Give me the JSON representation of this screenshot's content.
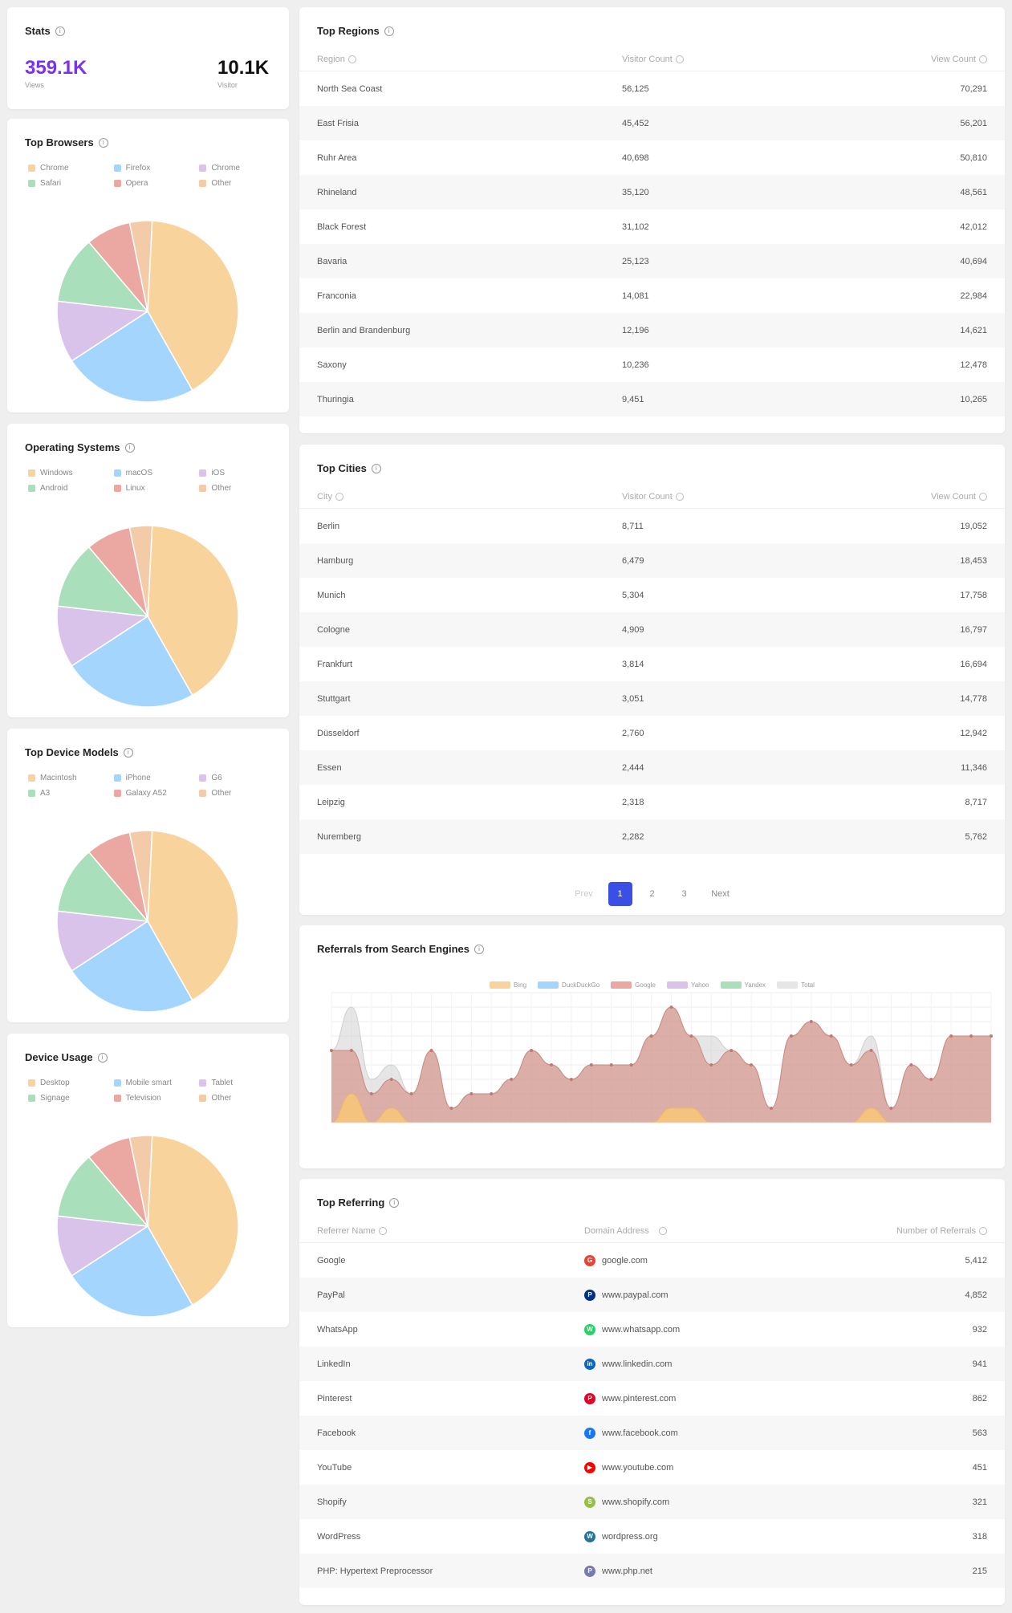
{
  "stats": {
    "title": "Stats",
    "views_value": "359.1K",
    "views_label": "Views",
    "visitors_value": "10.1K",
    "visitors_label": "Visitor"
  },
  "colors": {
    "c1": "#f8d49c",
    "c2": "#a4d6fd",
    "c3": "#d9c3ea",
    "c4": "#a9dfba",
    "c5": "#eba8a3",
    "c6": "#f4cba9",
    "accent": "#7b2ff7",
    "page_active": "#3b4fe4"
  },
  "browsers": {
    "title": "Top Browsers",
    "legend": [
      "Chrome",
      "Firefox",
      "Chrome",
      "Safari",
      "Opera",
      "Other"
    ],
    "values": [
      41,
      24,
      11,
      12,
      8,
      4
    ]
  },
  "os": {
    "title": "Operating Systems",
    "legend": [
      "Windows",
      "macOS",
      "iOS",
      "Android",
      "Linux",
      "Other"
    ],
    "values": [
      41,
      24,
      11,
      12,
      8,
      4
    ]
  },
  "devices": {
    "title": "Top Device Models",
    "legend": [
      "Macintosh",
      "iPhone",
      "G6",
      "A3",
      "Galaxy A52",
      "Other"
    ],
    "values": [
      41,
      24,
      11,
      12,
      8,
      4
    ]
  },
  "usage": {
    "title": "Device Usage",
    "legend": [
      "Desktop",
      "Mobile smart",
      "Tablet",
      "Signage",
      "Television",
      "Other"
    ],
    "values": [
      41,
      24,
      11,
      12,
      8,
      4
    ]
  },
  "regions": {
    "title": "Top Regions",
    "headers": [
      "Region",
      "Visitor Count",
      "View Count"
    ],
    "rows": [
      [
        "North Sea Coast",
        "56,125",
        "70,291"
      ],
      [
        "East Frisia",
        "45,452",
        "56,201"
      ],
      [
        "Ruhr Area",
        "40,698",
        "50,810"
      ],
      [
        "Rhineland",
        "35,120",
        "48,561"
      ],
      [
        "Black Forest",
        "31,102",
        "42,012"
      ],
      [
        "Bavaria",
        "25,123",
        "40,694"
      ],
      [
        "Franconia",
        "14,081",
        "22,984"
      ],
      [
        "Berlin and Brandenburg",
        "12,196",
        "14,621"
      ],
      [
        "Saxony",
        "10,236",
        "12,478"
      ],
      [
        "Thuringia",
        "9,451",
        "10,265"
      ]
    ]
  },
  "cities": {
    "title": "Top Cities",
    "headers": [
      "City",
      "Visitor Count",
      "View Count"
    ],
    "rows": [
      [
        "Berlin",
        "8,711",
        "19,052"
      ],
      [
        "Hamburg",
        "6,479",
        "18,453"
      ],
      [
        "Munich",
        "5,304",
        "17,758"
      ],
      [
        "Cologne",
        "4,909",
        "16,797"
      ],
      [
        "Frankfurt",
        "3,814",
        "16,694"
      ],
      [
        "Stuttgart",
        "3,051",
        "14,778"
      ],
      [
        "Düsseldorf",
        "2,760",
        "12,942"
      ],
      [
        "Essen",
        "2,444",
        "11,346"
      ],
      [
        "Leipzig",
        "2,318",
        "8,717"
      ],
      [
        "Nuremberg",
        "2,282",
        "5,762"
      ]
    ],
    "pagination": {
      "prev": "Prev",
      "pages": [
        "1",
        "2",
        "3"
      ],
      "next": "Next"
    }
  },
  "referrals": {
    "title": "Referrals from Search Engines",
    "legend": [
      "Bing",
      "DuckDuckGo",
      "Google",
      "Yahoo",
      "Yandex",
      "Total"
    ],
    "legend_colors": [
      "#f8d49c",
      "#a4d6fd",
      "#eba8a3",
      "#d9c3ea",
      "#a9dfba",
      "#e6e6e6"
    ]
  },
  "chart_data": {
    "type": "area",
    "series": [
      {
        "name": "Google",
        "values": [
          5,
          5,
          2,
          3,
          2,
          5,
          1,
          2,
          2,
          3,
          5,
          4,
          3,
          4,
          4,
          4,
          6,
          8,
          6,
          4,
          5,
          4,
          1,
          6,
          7,
          6,
          4,
          5,
          1,
          4,
          3,
          6,
          6,
          6
        ]
      },
      {
        "name": "Bing",
        "values": [
          0,
          2,
          0,
          1,
          0,
          0,
          0,
          0,
          0,
          0,
          0,
          0,
          0,
          0,
          0,
          0,
          0,
          1,
          1,
          0,
          0,
          0,
          0,
          0,
          0,
          0,
          0,
          1,
          0,
          0,
          0,
          0,
          0,
          0
        ]
      },
      {
        "name": "Total",
        "values": [
          5,
          8,
          3,
          4,
          2,
          5,
          1,
          2,
          2,
          3,
          5,
          4,
          3,
          4,
          4,
          4,
          6,
          8,
          6,
          6,
          5,
          4,
          1,
          6,
          7,
          6,
          4,
          6,
          1,
          4,
          3,
          6,
          6,
          6
        ]
      }
    ],
    "ylim": [
      0,
      9
    ]
  },
  "referring": {
    "title": "Top Referring",
    "headers": [
      "Referrer Name",
      "Domain Address",
      "Number of Referrals"
    ],
    "rows": [
      [
        "Google",
        "google.com",
        "5,412",
        "#ea4335",
        "G"
      ],
      [
        "PayPal",
        "www.paypal.com",
        "4,852",
        "#003087",
        "P"
      ],
      [
        "WhatsApp",
        "www.whatsapp.com",
        "932",
        "#25d366",
        "W"
      ],
      [
        "LinkedIn",
        "www.linkedin.com",
        "941",
        "#0a66c2",
        "in"
      ],
      [
        "Pinterest",
        "www.pinterest.com",
        "862",
        "#e60023",
        "P"
      ],
      [
        "Facebook",
        "www.facebook.com",
        "563",
        "#1877f2",
        "f"
      ],
      [
        "YouTube",
        "www.youtube.com",
        "451",
        "#ff0000",
        "▶"
      ],
      [
        "Shopify",
        "www.shopify.com",
        "321",
        "#95bf47",
        "S"
      ],
      [
        "WordPress",
        "wordpress.org",
        "318",
        "#21759b",
        "W"
      ],
      [
        "PHP: Hypertext Preprocessor",
        "www.php.net",
        "215",
        "#777bb4",
        "P"
      ]
    ]
  }
}
